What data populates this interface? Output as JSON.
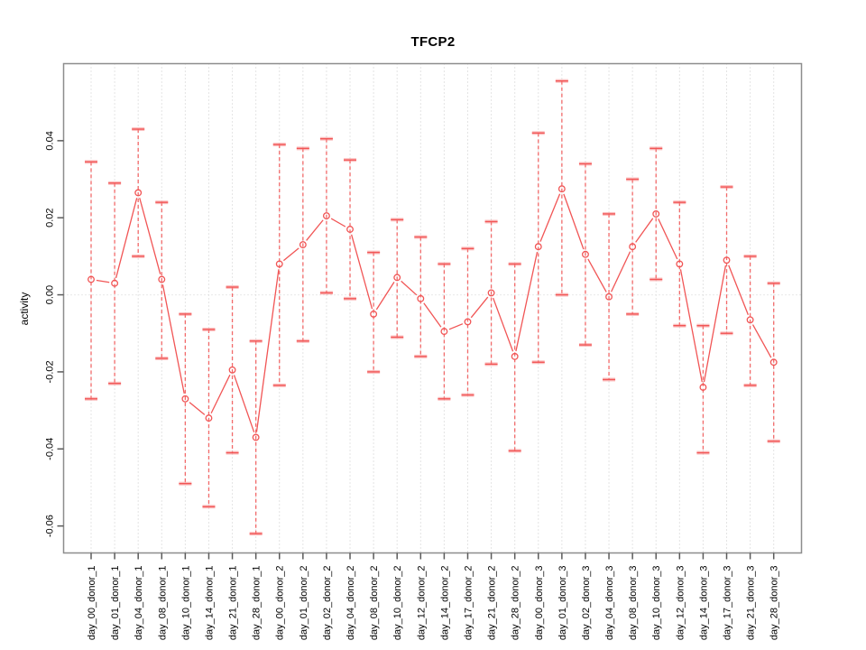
{
  "chart_data": {
    "type": "line",
    "title": "TFCP2",
    "xlabel": "",
    "ylabel": "activity",
    "legend": "none",
    "grid": "vertical dotted gridline per category; dotted horizontal line at y=0",
    "marker": "open-circle",
    "error_bars": "dashed vertical whiskers with capped ends",
    "ylim": [
      -0.067,
      0.06
    ],
    "yticks": [
      0.04,
      0.02,
      0.0,
      -0.02,
      -0.04,
      -0.06
    ],
    "ytick_labels": [
      "0.04",
      "0.02",
      "0.00",
      "-0.02",
      "-0.04",
      "-0.06"
    ],
    "categories": [
      "day_00_donor_1",
      "day_01_donor_1",
      "day_04_donor_1",
      "day_08_donor_1",
      "day_10_donor_1",
      "day_14_donor_1",
      "day_21_donor_1",
      "day_28_donor_1",
      "day_00_donor_2",
      "day_01_donor_2",
      "day_02_donor_2",
      "day_04_donor_2",
      "day_08_donor_2",
      "day_10_donor_2",
      "day_12_donor_2",
      "day_14_donor_2",
      "day_17_donor_2",
      "day_21_donor_2",
      "day_28_donor_2",
      "day_00_donor_3",
      "day_01_donor_3",
      "day_02_donor_3",
      "day_04_donor_3",
      "day_08_donor_3",
      "day_10_donor_3",
      "day_12_donor_3",
      "day_14_donor_3",
      "day_17_donor_3",
      "day_21_donor_3",
      "day_28_donor_3"
    ],
    "series": [
      {
        "name": "activity",
        "values": [
          0.004,
          0.003,
          0.0265,
          0.004,
          -0.027,
          -0.032,
          -0.0195,
          -0.037,
          0.008,
          0.013,
          0.0205,
          0.017,
          -0.005,
          0.0045,
          -0.001,
          -0.0095,
          -0.007,
          0.0005,
          -0.016,
          0.0125,
          0.0275,
          0.0105,
          -0.0005,
          0.0125,
          0.021,
          0.008,
          -0.024,
          0.009,
          -0.0065,
          -0.0175
        ],
        "error_low": [
          -0.027,
          -0.023,
          0.01,
          -0.0165,
          -0.049,
          -0.055,
          -0.041,
          -0.062,
          -0.0235,
          -0.012,
          0.0005,
          -0.001,
          -0.02,
          -0.011,
          -0.016,
          -0.027,
          -0.026,
          -0.018,
          -0.0405,
          -0.0175,
          0.0,
          -0.013,
          -0.022,
          -0.005,
          0.004,
          -0.008,
          -0.041,
          -0.01,
          -0.0235,
          -0.038
        ],
        "error_high": [
          0.0345,
          0.029,
          0.043,
          0.024,
          -0.005,
          -0.009,
          0.002,
          -0.012,
          0.039,
          0.038,
          0.0405,
          0.035,
          0.011,
          0.0195,
          0.015,
          0.008,
          0.012,
          0.019,
          0.008,
          0.042,
          0.0555,
          0.034,
          0.021,
          0.03,
          0.038,
          0.024,
          -0.008,
          0.028,
          0.01,
          0.003
        ]
      }
    ],
    "colors": {
      "series": "#f15555",
      "whisker": "#f26a6a",
      "cap_glow": "rgba(248,130,130,0.5)",
      "grid": "#c9c9c9",
      "zero_line": "#d2d2d2",
      "box": "#8d8d8d",
      "tick": "#5a5a5a",
      "text": "#000000"
    }
  }
}
